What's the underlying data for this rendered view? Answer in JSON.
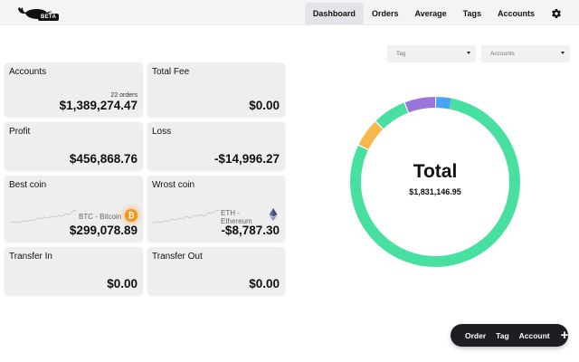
{
  "app": {
    "badge": "BETA"
  },
  "nav": {
    "items": [
      {
        "label": "Dashboard",
        "active": true
      },
      {
        "label": "Orders"
      },
      {
        "label": "Average"
      },
      {
        "label": "Tags"
      },
      {
        "label": "Accounts"
      }
    ],
    "settings_icon": "gear-icon"
  },
  "cards": {
    "accounts": {
      "title": "Accounts",
      "sub": "22 orders",
      "value": "$1,389,274.47"
    },
    "total_fee": {
      "title": "Total Fee",
      "value": "$0.00"
    },
    "profit": {
      "title": "Profit",
      "value": "$456,868.76"
    },
    "loss": {
      "title": "Loss",
      "value": "-$14,996.27"
    },
    "best_coin": {
      "title": "Best coin",
      "coin_label": "BTC - Bitcoin",
      "value": "$299,078.89",
      "icon": "bitcoin-icon"
    },
    "worst_coin": {
      "title": "Wrost coin",
      "coin_label_line1": "ETH -",
      "coin_label_line2": "Ethereum",
      "value": "-$8,787.30",
      "icon": "ethereum-icon"
    },
    "transfer_in": {
      "title": "Transfer In",
      "value": "$0.00"
    },
    "transfer_out": {
      "title": "Transfer Out",
      "value": "$0.00"
    }
  },
  "filters": {
    "tag": {
      "placeholder": "Tag"
    },
    "accounts": {
      "placeholder": "Accounts"
    }
  },
  "donut": {
    "title": "Total",
    "total": "$1,831,146.95",
    "segments": [
      {
        "fraction": 0.81,
        "color": "#47e0a0"
      },
      {
        "fraction": 0.055,
        "color": "#f6b84b"
      },
      {
        "fraction": 0.065,
        "color": "#47e0a0"
      },
      {
        "fraction": 0.06,
        "color": "#9b74dc"
      },
      {
        "fraction": 0.03,
        "color": "#4aa3f5"
      }
    ],
    "segment_start_fraction": 0.012
  },
  "fab": {
    "items": [
      "Order",
      "Tag",
      "Account"
    ],
    "plus_label": "+"
  },
  "colors": {
    "card_bg": "#eeeeef",
    "header_bg": "#f4f4f6",
    "fab_bg": "#1e1e22",
    "btc": "#f7931a"
  }
}
